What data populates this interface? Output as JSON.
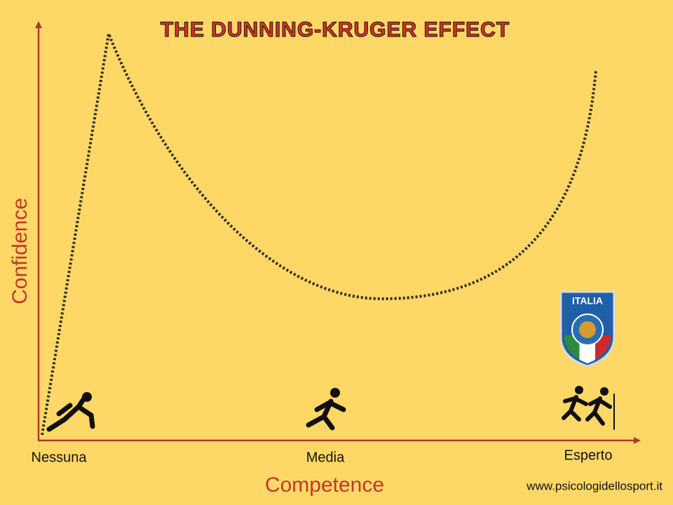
{
  "title": "THE DUNNING-KRUGER EFFECT",
  "y_axis_label": "Confidence",
  "x_axis_label": "Competence",
  "x_labels": [
    "Nessuna",
    "Media",
    "Esperto"
  ],
  "badge": {
    "title": "ITALIA"
  },
  "footer": "www.psicologidellosport.it"
}
